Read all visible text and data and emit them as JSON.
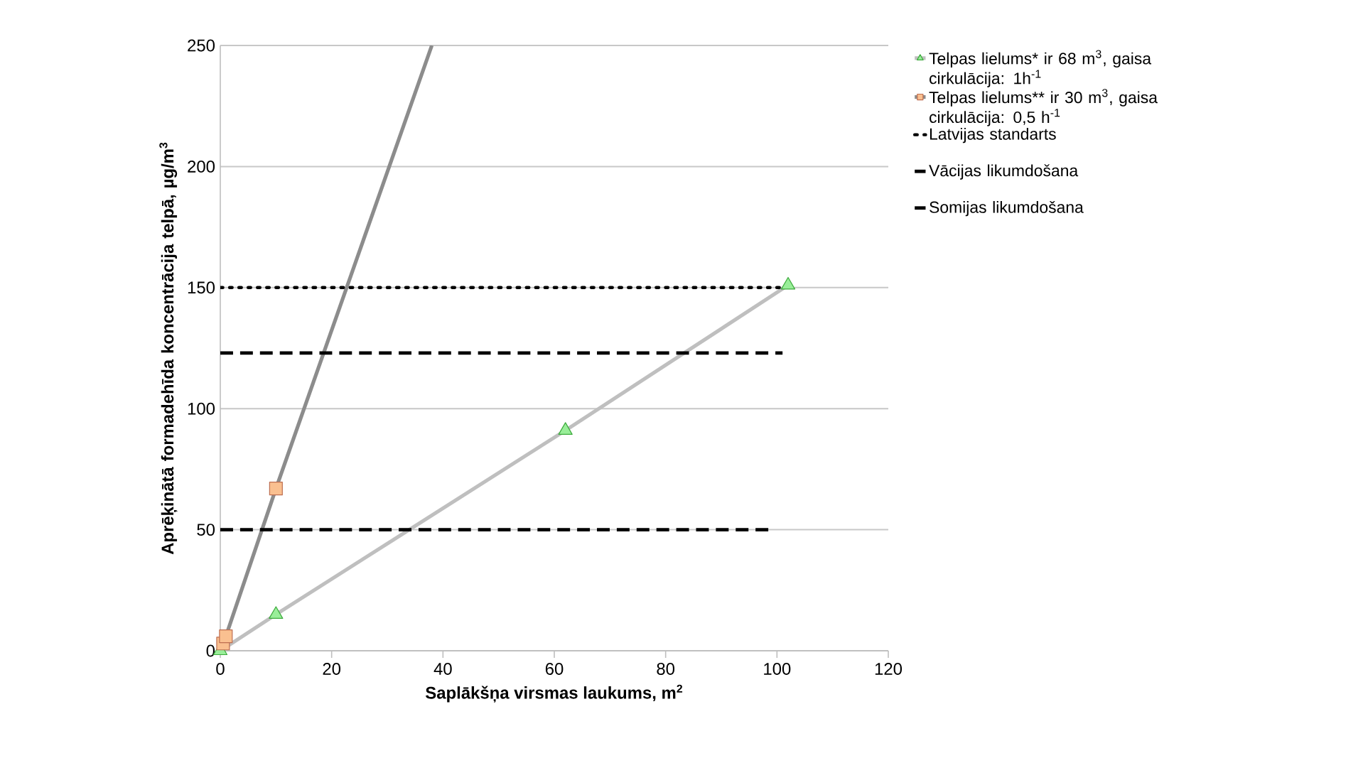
{
  "chart_data": {
    "type": "line",
    "xlabel": "Saplākšņa virsmas laukums, m$^{2}$",
    "ylabel": "Aprēķinātā formadehīda koncentrācija telpā, µg/m$^{3}$",
    "xlim": [
      0,
      120
    ],
    "xticks": [
      0,
      20,
      40,
      60,
      80,
      100,
      120
    ],
    "ylim": [
      0,
      250
    ],
    "yticks": [
      0,
      50,
      100,
      150,
      200,
      250
    ],
    "grid": "y",
    "legend": "right",
    "series": [
      {
        "name": "Telpas lielums* ir 68 m$^{3}$, gaisa cirkulācija: 1h$^{-1}$",
        "color": "#bfbfbf",
        "marker": "triangle",
        "line_style": "solid",
        "x": [
          0,
          10,
          62,
          102
        ],
        "values": [
          0,
          15,
          91,
          151
        ]
      },
      {
        "name": "Telpas lielums** ir 30 m$^{3}$, gaisa cirkulācija: 0,5 h$^{-1}$",
        "color": "#8c8c8c",
        "marker": "square",
        "line_style": "solid",
        "x": [
          0.5,
          1,
          10
        ],
        "values": [
          3,
          6,
          67
        ]
      },
      {
        "color": "#8c8c8c",
        "marker": "none",
        "line_style": "solid",
        "x": [
          10,
          38
        ],
        "values": [
          67,
          250
        ]
      },
      {
        "name": "Latvijas standarts",
        "color": "#000000",
        "marker": "none",
        "line_style": "dotted",
        "x": [
          0,
          101
        ],
        "values": [
          150,
          150
        ]
      },
      {
        "name": "Vācijas likumdošana",
        "color": "#000000",
        "marker": "none",
        "line_style": "dashed",
        "x": [
          0,
          101
        ],
        "values": [
          123,
          123
        ]
      },
      {
        "name": "Somijas likumdošana",
        "color": "#000000",
        "marker": "none",
        "line_style": "dashed",
        "x": [
          0,
          99
        ],
        "values": [
          50,
          50
        ]
      }
    ]
  }
}
